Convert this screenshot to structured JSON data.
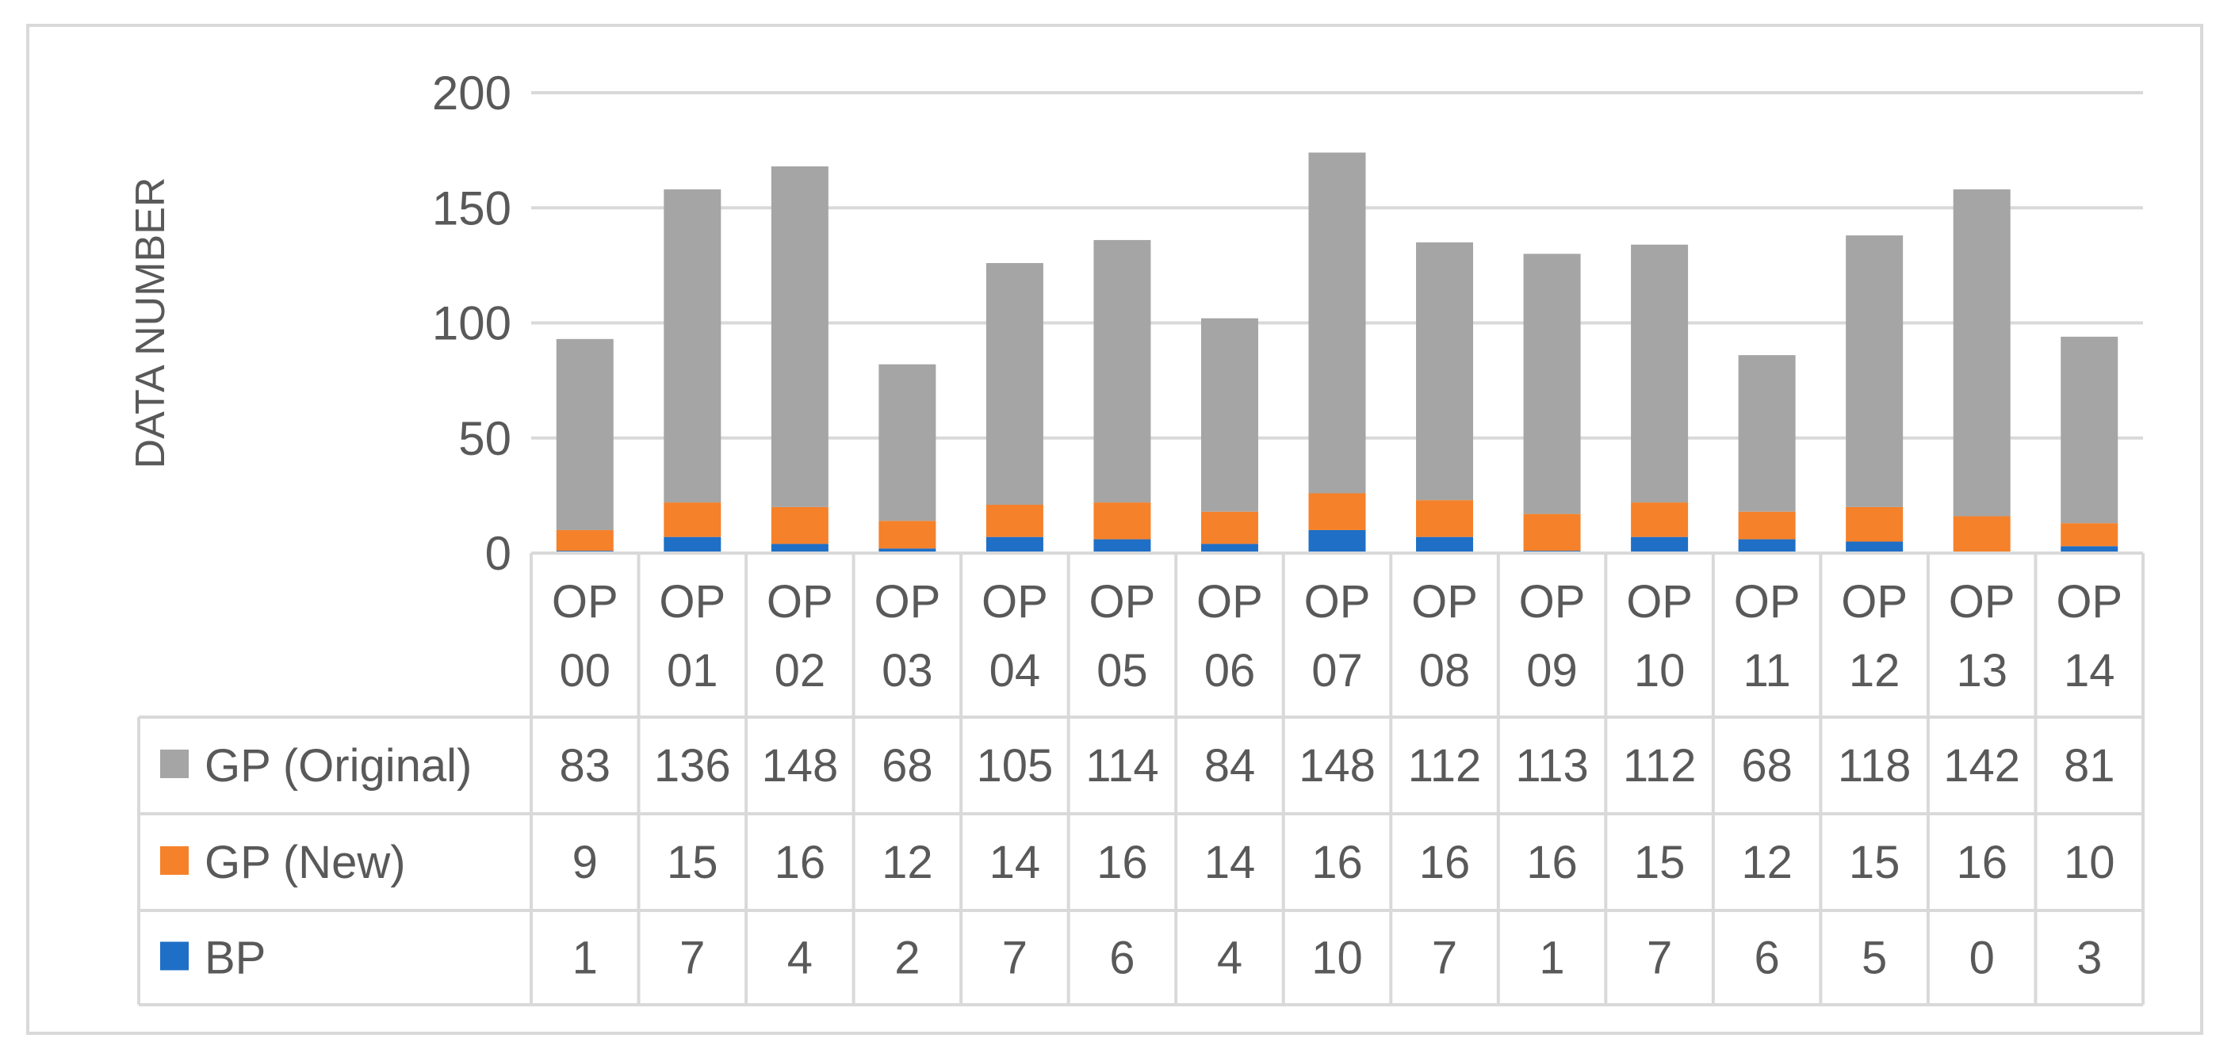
{
  "chart_data": {
    "type": "bar",
    "stacked": true,
    "categories": [
      "OP 00",
      "OP 01",
      "OP 02",
      "OP 03",
      "OP 04",
      "OP 05",
      "OP 06",
      "OP 07",
      "OP 08",
      "OP 09",
      "OP 10",
      "OP 11",
      "OP 12",
      "OP 13",
      "OP 14"
    ],
    "category_lines": [
      [
        "OP",
        "00"
      ],
      [
        "OP",
        "01"
      ],
      [
        "OP",
        "02"
      ],
      [
        "OP",
        "03"
      ],
      [
        "OP",
        "04"
      ],
      [
        "OP",
        "05"
      ],
      [
        "OP",
        "06"
      ],
      [
        "OP",
        "07"
      ],
      [
        "OP",
        "08"
      ],
      [
        "OP",
        "09"
      ],
      [
        "OP",
        "10"
      ],
      [
        "OP",
        "11"
      ],
      [
        "OP",
        "12"
      ],
      [
        "OP",
        "13"
      ],
      [
        "OP",
        "14"
      ]
    ],
    "series": [
      {
        "name": "BP",
        "color": "#1f6fc6",
        "values": [
          1,
          7,
          4,
          2,
          7,
          6,
          4,
          10,
          7,
          1,
          7,
          6,
          5,
          0,
          3
        ]
      },
      {
        "name": "GP (New)",
        "color": "#f5812a",
        "values": [
          9,
          15,
          16,
          12,
          14,
          16,
          14,
          16,
          16,
          16,
          15,
          12,
          15,
          16,
          10
        ]
      },
      {
        "name": "GP (Original)",
        "color": "#a5a5a5",
        "values": [
          83,
          136,
          148,
          68,
          105,
          114,
          84,
          148,
          112,
          113,
          112,
          68,
          118,
          142,
          81
        ]
      }
    ],
    "table_row_order": [
      "GP (Original)",
      "GP (New)",
      "BP"
    ],
    "ylabel": "DATA NUMBER",
    "xlabel": "",
    "title": "",
    "ylim": [
      0,
      200
    ],
    "yticks": [
      0,
      50,
      100,
      150,
      200
    ],
    "grid": true,
    "legend": "data table"
  }
}
